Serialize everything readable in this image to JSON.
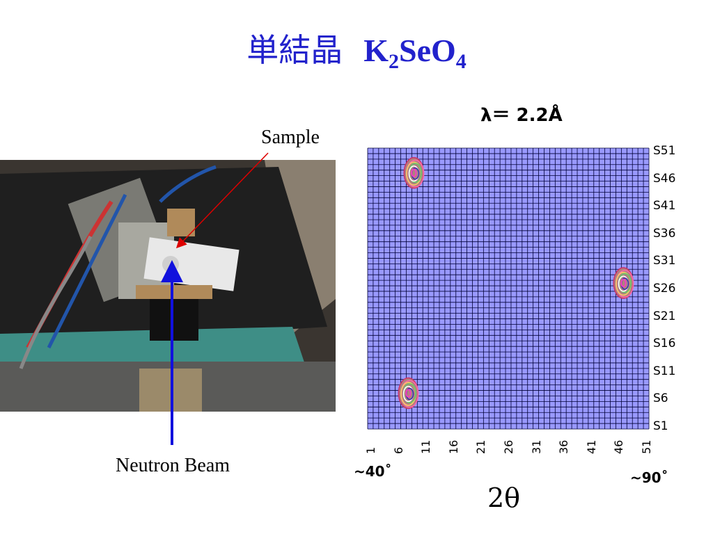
{
  "slide": {
    "title_jp": "単結晶",
    "title_formula": {
      "k": "K",
      "k_sub": "2",
      "se": "SeO",
      "o_sub": "4"
    },
    "wavelength": "λ＝ 2.2Å",
    "sample_label": "Sample",
    "beam_label": "Neutron Beam",
    "angle_min": "~40˚",
    "angle_max": "~90˚",
    "axis_symbol": "2θ"
  },
  "colors": {
    "title": "#2222cc",
    "grid_fill": "#9999ff",
    "grid_line": "#000033",
    "beam_arrow": "#1111dd",
    "sample_arrow": "#dd0000"
  },
  "chart_data": {
    "type": "heatmap",
    "grid": {
      "columns": 51,
      "rows": 51
    },
    "x_ticks": [
      "1",
      "6",
      "11",
      "16",
      "21",
      "26",
      "31",
      "36",
      "41",
      "46",
      "51"
    ],
    "y_ticks": [
      "S1",
      "S6",
      "S11",
      "S16",
      "S21",
      "S26",
      "S31",
      "S36",
      "S41",
      "S46",
      "S51"
    ],
    "xlim": [
      1,
      51
    ],
    "ylim": [
      1,
      51
    ],
    "peaks": [
      {
        "x": 9,
        "y": 47
      },
      {
        "x": 47,
        "y": 27
      },
      {
        "x": 8,
        "y": 7
      }
    ]
  }
}
